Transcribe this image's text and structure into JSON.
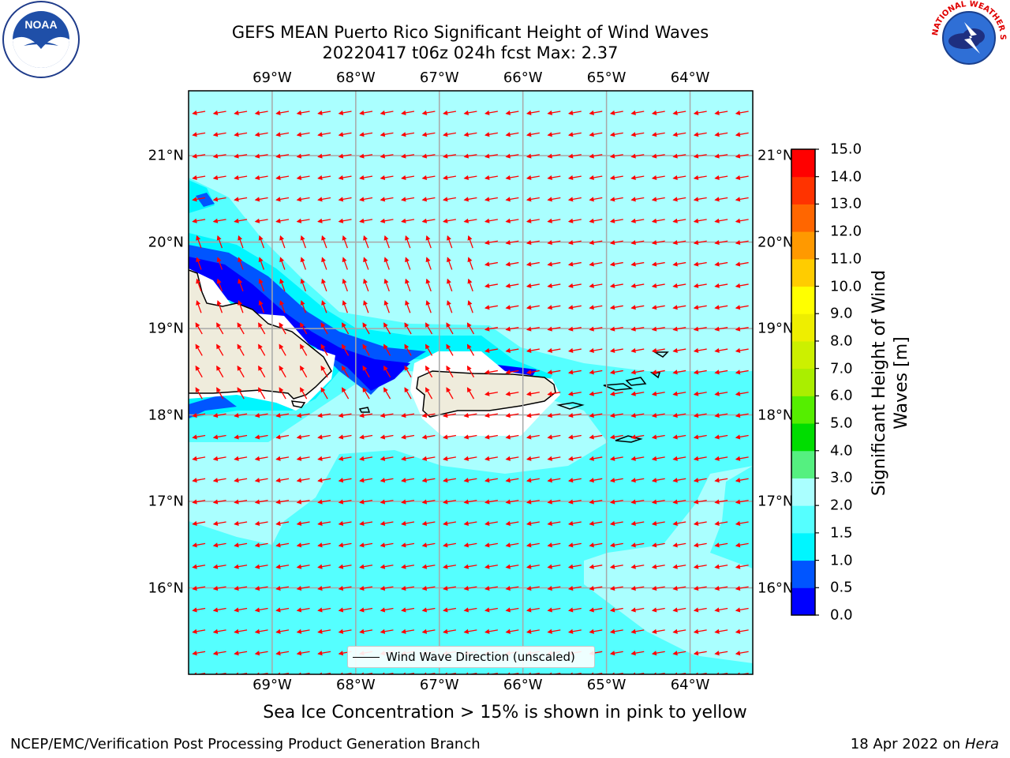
{
  "header": {
    "title_line1": "GEFS MEAN Puerto Rico Significant Height of Wind Waves",
    "title_line2": "20220417 t06z 024h fcst   Max: 2.37"
  },
  "logos": {
    "left": {
      "name": "noaa-logo",
      "text": "NOAA",
      "ring_text": "NATIONAL OCEANIC AND ATMOSPHERIC ADMINISTRATION · U.S. DEPARTMENT OF COMMERCE"
    },
    "right": {
      "name": "national-weather-service-logo",
      "ring_text": "NATIONAL WEATHER SERVICE"
    }
  },
  "map": {
    "lon_ticks": [
      "69°W",
      "68°W",
      "67°W",
      "66°W",
      "65°W",
      "64°W"
    ],
    "lat_ticks": [
      "21°N",
      "20°N",
      "19°N",
      "18°N",
      "17°N",
      "16°N"
    ],
    "extent": {
      "lon": [
        -70.0,
        -63.25
      ],
      "lat": [
        15.0,
        21.75
      ]
    },
    "arrow_color": "#ff0000",
    "legend_label": "Wind Wave Direction (unscaled)"
  },
  "colorbar": {
    "title": "Significant Height of Wind Waves [m]",
    "tick_labels": [
      "0.0",
      "0.5",
      "1.0",
      "1.5",
      "2.0",
      "3.0",
      "4.0",
      "5.0",
      "6.0",
      "7.0",
      "8.0",
      "9.0",
      "10.0",
      "11.0",
      "12.0",
      "13.0",
      "14.0",
      "15.0"
    ],
    "colors": [
      "#0000ff",
      "#0055ff",
      "#00f6ff",
      "#55ffff",
      "#aaffff",
      "#55f080",
      "#00dd00",
      "#55ee00",
      "#aaee00",
      "#ccf000",
      "#eeee00",
      "#ffff00",
      "#ffcc00",
      "#ff9900",
      "#ff6600",
      "#ff3300",
      "#ff0000"
    ]
  },
  "caption": "Sea Ice Concentration > 15% is shown in pink to yellow",
  "footer": {
    "left": "NCEP/EMC/Verification Post Processing Product Generation Branch",
    "right_date": "18 Apr 2022 on ",
    "right_machine": "Hera"
  }
}
